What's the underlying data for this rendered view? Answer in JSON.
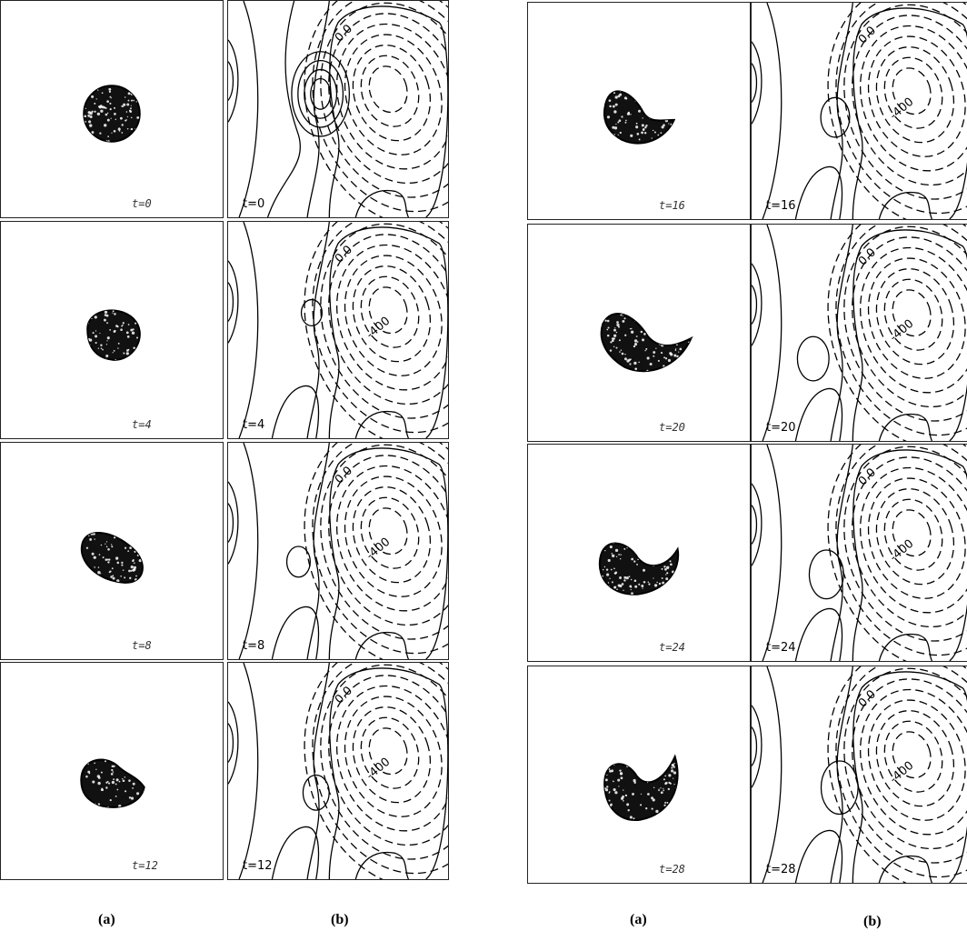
{
  "figure": {
    "left_group": {
      "caption_a": "(a)",
      "caption_b": "(b)",
      "rows": [
        {
          "a_label": "t=0",
          "b_label": "t=0",
          "neg_label": "",
          "zero_label": "0.0"
        },
        {
          "a_label": "t=4",
          "b_label": "t=4",
          "neg_label": "-400",
          "zero_label": "0.0"
        },
        {
          "a_label": "t=8",
          "b_label": "t=8",
          "neg_label": "-400",
          "zero_label": "0.0"
        },
        {
          "a_label": "t=12",
          "b_label": "t=12",
          "neg_label": "-400",
          "zero_label": "0.0"
        }
      ]
    },
    "right_group": {
      "caption_a": "(a)",
      "caption_b": "(b)",
      "rows": [
        {
          "a_label": "t=16",
          "b_label": "t=16",
          "neg_label": "-400",
          "zero_label": "0.0"
        },
        {
          "a_label": "t=20",
          "b_label": "t=20",
          "neg_label": "-400",
          "zero_label": "0.0"
        },
        {
          "a_label": "t=24",
          "b_label": "t=24",
          "neg_label": "-400",
          "zero_label": "0.0"
        },
        {
          "a_label": "t=28",
          "b_label": "t=28",
          "neg_label": "-400",
          "zero_label": "0.0"
        }
      ]
    }
  }
}
